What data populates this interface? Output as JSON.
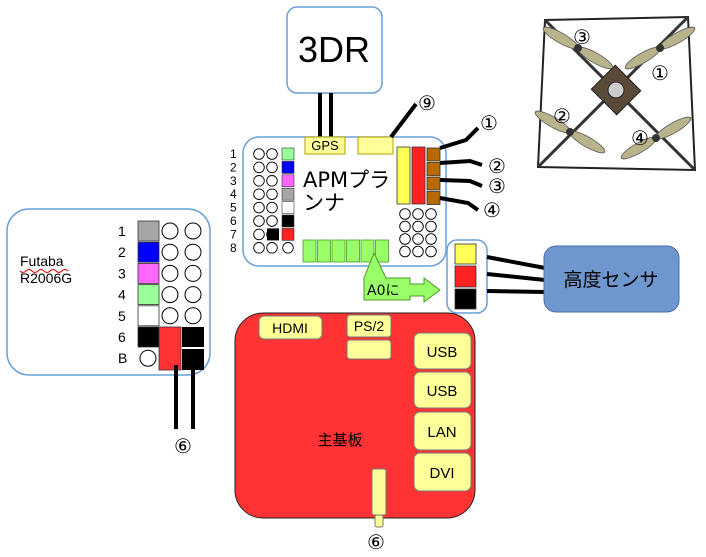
{
  "labels": {
    "box_3dr": "3DR",
    "gps": "GPS",
    "apm_title": "APMプラ\nンナ",
    "altitude_sensor": "高度センサ",
    "a0_arrow": "A0に",
    "receiver": "Futaba\nR2006G",
    "mainboard": "主基板",
    "hdmi": "HDMI",
    "ps2": "PS/2",
    "usb1": "USB",
    "usb2": "USB",
    "lan": "LAN",
    "dvi": "DVI",
    "circle_9": "⑨",
    "circle_6_left": "⑥",
    "circle_6_bottom": "⑥",
    "motor_1": "①",
    "motor_2": "②",
    "motor_3": "③",
    "motor_4": "④"
  },
  "apm_row_labels": [
    "1",
    "2",
    "3",
    "4",
    "5",
    "6",
    "7",
    "8"
  ],
  "receiver_row_labels": [
    "1",
    "2",
    "3",
    "4",
    "5",
    "6",
    "B"
  ],
  "quad_labels": {
    "tl": "③",
    "tr": "①",
    "bl": "②",
    "br": "④"
  },
  "colors": {
    "ch1": "#a6a6a6",
    "ch2": "#0000ff",
    "ch3": "#ff66ff",
    "ch4": "#99ff99",
    "ch5": "#ffffff",
    "ch6": "#000000",
    "mainboard": "#ff3333",
    "port": "#ffff99",
    "sensor_box": "#6f97cf",
    "green_header": "#99ff66",
    "yellow": "#ffff55",
    "red": "#ff2222",
    "esc_brown": "#b86a00"
  }
}
